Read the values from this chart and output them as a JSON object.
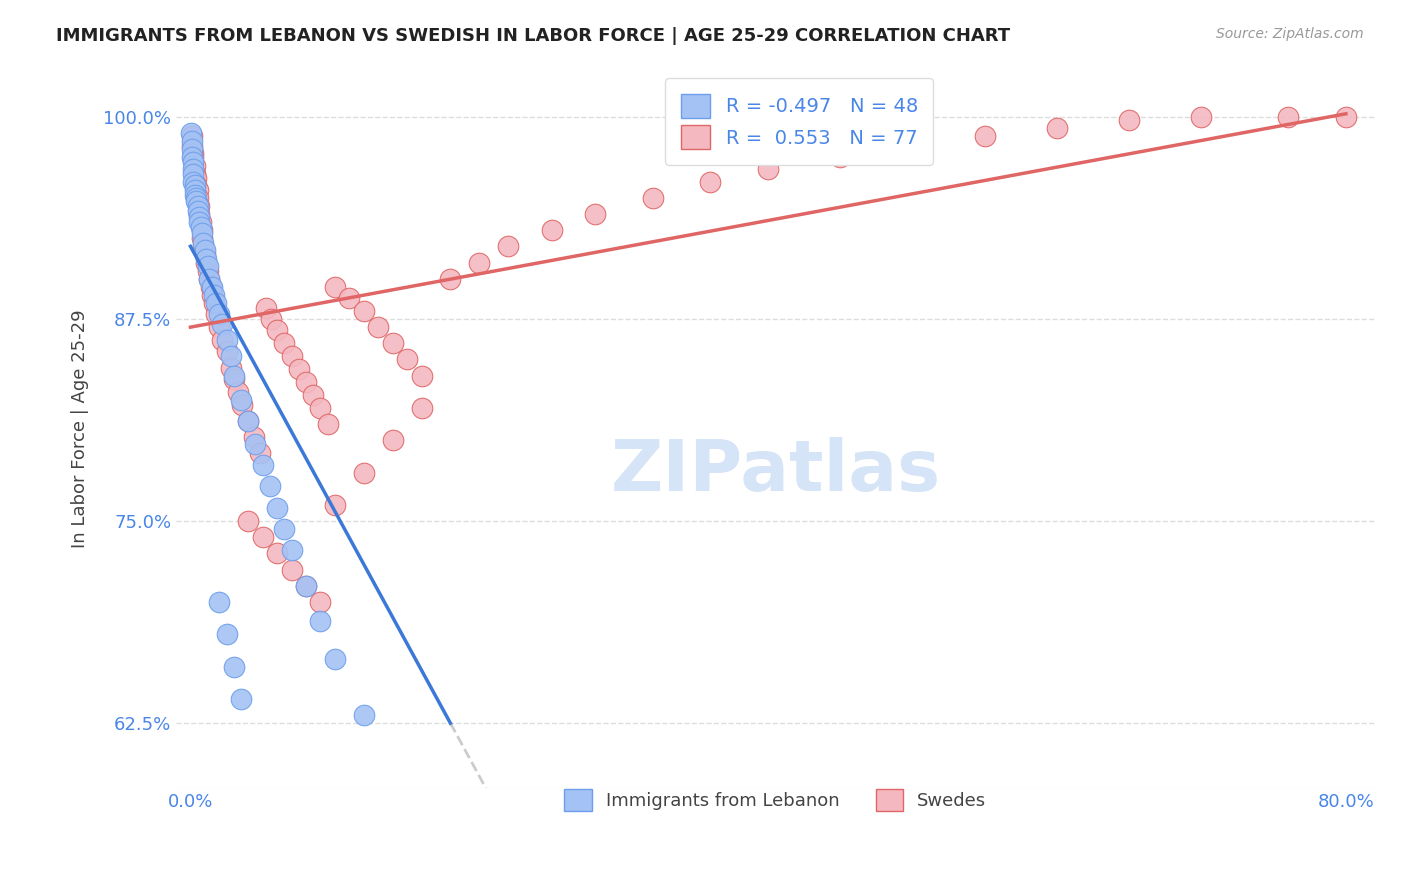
{
  "title": "IMMIGRANTS FROM LEBANON VS SWEDISH IN LABOR FORCE | AGE 25-29 CORRELATION CHART",
  "source": "Source: ZipAtlas.com",
  "ylabel": "In Labor Force | Age 25-29",
  "x_tick_labels": [
    "0.0%",
    "80.0%"
  ],
  "y_tick_labels": [
    "62.5%",
    "75.0%",
    "87.5%",
    "100.0%"
  ],
  "legend_label1": "Immigrants from Lebanon",
  "legend_label2": "Swedes",
  "r1": -0.497,
  "n1": 48,
  "r2": 0.553,
  "n2": 77,
  "color_blue": "#a4c2f4",
  "color_pink": "#f4b8c1",
  "color_blue_edge": "#6d9eeb",
  "color_pink_edge": "#e06666",
  "color_line_blue": "#3c78d8",
  "color_line_pink": "#e06666",
  "color_line_ext": "#cccccc",
  "color_tick_label": "#4a86e8",
  "watermark_color": "#d6e4f7",
  "xlim": [
    -0.01,
    0.82
  ],
  "ylim": [
    0.585,
    1.03
  ],
  "y_ticks": [
    0.625,
    0.75,
    0.875,
    1.0
  ],
  "x_ticks": [
    0.0,
    0.8
  ],
  "blue_x": [
    0.0005,
    0.001,
    0.001,
    0.001,
    0.002,
    0.002,
    0.002,
    0.002,
    0.003,
    0.003,
    0.003,
    0.004,
    0.004,
    0.005,
    0.005,
    0.006,
    0.006,
    0.007,
    0.008,
    0.009,
    0.01,
    0.011,
    0.012,
    0.013,
    0.015,
    0.016,
    0.018,
    0.02,
    0.022,
    0.025,
    0.028,
    0.03,
    0.035,
    0.04,
    0.045,
    0.05,
    0.055,
    0.06,
    0.065,
    0.07,
    0.08,
    0.09,
    0.1,
    0.12,
    0.02,
    0.025,
    0.03,
    0.035
  ],
  "blue_y": [
    0.99,
    0.985,
    0.98,
    0.975,
    0.972,
    0.968,
    0.965,
    0.96,
    0.958,
    0.955,
    0.952,
    0.95,
    0.948,
    0.945,
    0.942,
    0.938,
    0.935,
    0.932,
    0.928,
    0.922,
    0.918,
    0.912,
    0.908,
    0.9,
    0.895,
    0.89,
    0.885,
    0.878,
    0.872,
    0.862,
    0.852,
    0.84,
    0.825,
    0.812,
    0.798,
    0.785,
    0.772,
    0.758,
    0.745,
    0.732,
    0.71,
    0.688,
    0.665,
    0.63,
    0.7,
    0.68,
    0.66,
    0.64
  ],
  "pink_x": [
    0.001,
    0.001,
    0.002,
    0.002,
    0.003,
    0.003,
    0.004,
    0.004,
    0.005,
    0.005,
    0.006,
    0.006,
    0.007,
    0.008,
    0.008,
    0.009,
    0.01,
    0.011,
    0.012,
    0.013,
    0.014,
    0.015,
    0.016,
    0.018,
    0.02,
    0.022,
    0.025,
    0.028,
    0.03,
    0.033,
    0.036,
    0.04,
    0.044,
    0.048,
    0.052,
    0.056,
    0.06,
    0.065,
    0.07,
    0.075,
    0.08,
    0.085,
    0.09,
    0.095,
    0.1,
    0.11,
    0.12,
    0.13,
    0.14,
    0.15,
    0.16,
    0.18,
    0.2,
    0.22,
    0.25,
    0.28,
    0.32,
    0.36,
    0.4,
    0.45,
    0.5,
    0.55,
    0.6,
    0.65,
    0.7,
    0.76,
    0.8,
    0.04,
    0.05,
    0.06,
    0.07,
    0.08,
    0.09,
    0.1,
    0.12,
    0.14,
    0.16
  ],
  "pink_y": [
    0.988,
    0.982,
    0.978,
    0.975,
    0.97,
    0.965,
    0.962,
    0.958,
    0.955,
    0.95,
    0.945,
    0.94,
    0.935,
    0.93,
    0.925,
    0.92,
    0.915,
    0.91,
    0.905,
    0.9,
    0.895,
    0.89,
    0.885,
    0.878,
    0.87,
    0.862,
    0.855,
    0.845,
    0.838,
    0.83,
    0.822,
    0.812,
    0.802,
    0.792,
    0.882,
    0.875,
    0.868,
    0.86,
    0.852,
    0.844,
    0.836,
    0.828,
    0.82,
    0.81,
    0.895,
    0.888,
    0.88,
    0.87,
    0.86,
    0.85,
    0.84,
    0.9,
    0.91,
    0.92,
    0.93,
    0.94,
    0.95,
    0.96,
    0.968,
    0.975,
    0.982,
    0.988,
    0.993,
    0.998,
    1.0,
    1.0,
    1.0,
    0.75,
    0.74,
    0.73,
    0.72,
    0.71,
    0.7,
    0.76,
    0.78,
    0.8,
    0.82
  ],
  "blue_line_x0": 0.0,
  "blue_line_x1": 0.18,
  "blue_line_y0": 0.92,
  "blue_line_y1": 0.625,
  "blue_line_ext_x0": 0.18,
  "blue_line_ext_x1": 0.5,
  "pink_line_x0": 0.0,
  "pink_line_x1": 0.8,
  "pink_line_y0": 0.87,
  "pink_line_y1": 1.002
}
